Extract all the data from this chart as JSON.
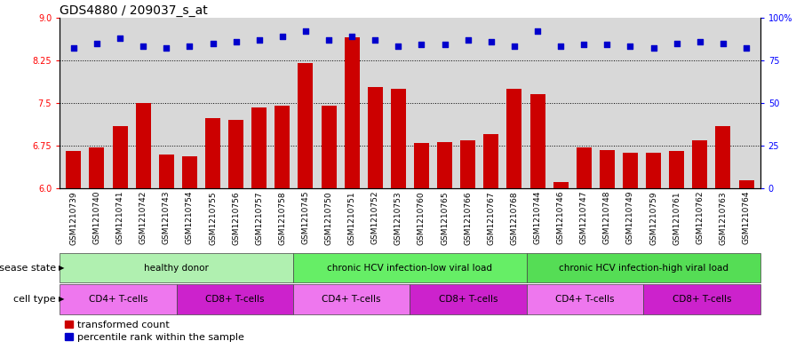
{
  "title": "GDS4880 / 209037_s_at",
  "samples": [
    "GSM1210739",
    "GSM1210740",
    "GSM1210741",
    "GSM1210742",
    "GSM1210743",
    "GSM1210754",
    "GSM1210755",
    "GSM1210756",
    "GSM1210757",
    "GSM1210758",
    "GSM1210745",
    "GSM1210750",
    "GSM1210751",
    "GSM1210752",
    "GSM1210753",
    "GSM1210760",
    "GSM1210765",
    "GSM1210766",
    "GSM1210767",
    "GSM1210768",
    "GSM1210744",
    "GSM1210746",
    "GSM1210747",
    "GSM1210748",
    "GSM1210749",
    "GSM1210759",
    "GSM1210761",
    "GSM1210762",
    "GSM1210763",
    "GSM1210764"
  ],
  "bar_values": [
    6.65,
    6.72,
    7.1,
    7.5,
    6.6,
    6.57,
    7.23,
    7.2,
    7.42,
    7.45,
    8.2,
    7.45,
    8.65,
    7.78,
    7.75,
    6.8,
    6.82,
    6.85,
    6.95,
    7.75,
    7.65,
    6.12,
    6.72,
    6.68,
    6.62,
    6.62,
    6.65,
    6.85,
    7.1,
    6.15
  ],
  "percentile_values": [
    82,
    85,
    88,
    83,
    82,
    83,
    85,
    86,
    87,
    89,
    92,
    87,
    89,
    87,
    83,
    84,
    84,
    87,
    86,
    83,
    92,
    83,
    84,
    84,
    83,
    82,
    85,
    86,
    85,
    82
  ],
  "bar_color": "#cc0000",
  "dot_color": "#0000cc",
  "ylim_left": [
    6.0,
    9.0
  ],
  "ylim_right": [
    0,
    100
  ],
  "yticks_left": [
    6.0,
    6.75,
    7.5,
    8.25,
    9.0
  ],
  "yticks_right": [
    0,
    25,
    50,
    75,
    100
  ],
  "ytick_labels_right": [
    "0",
    "25",
    "50",
    "75",
    "100%"
  ],
  "dotted_lines": [
    6.75,
    7.5,
    8.25
  ],
  "disease_state_groups": [
    {
      "label": "healthy donor",
      "start": 0,
      "end": 9,
      "color": "#b0f0b0"
    },
    {
      "label": "chronic HCV infection-low viral load",
      "start": 10,
      "end": 19,
      "color": "#66ee66"
    },
    {
      "label": "chronic HCV infection-high viral load",
      "start": 20,
      "end": 29,
      "color": "#55dd55"
    }
  ],
  "cell_type_groups": [
    {
      "label": "CD4+ T-cells",
      "start": 0,
      "end": 4,
      "color": "#ee77ee"
    },
    {
      "label": "CD8+ T-cells",
      "start": 5,
      "end": 9,
      "color": "#cc22cc"
    },
    {
      "label": "CD4+ T-cells",
      "start": 10,
      "end": 14,
      "color": "#ee77ee"
    },
    {
      "label": "CD8+ T-cells",
      "start": 15,
      "end": 19,
      "color": "#cc22cc"
    },
    {
      "label": "CD4+ T-cells",
      "start": 20,
      "end": 24,
      "color": "#ee77ee"
    },
    {
      "label": "CD8+ T-cells",
      "start": 25,
      "end": 29,
      "color": "#cc22cc"
    }
  ],
  "legend_items": [
    {
      "label": "transformed count",
      "color": "#cc0000"
    },
    {
      "label": "percentile rank within the sample",
      "color": "#0000cc"
    }
  ],
  "bg_color": "#d8d8d8",
  "title_fontsize": 10,
  "tick_fontsize": 7,
  "label_fontsize": 8,
  "band_label_fontsize": 8,
  "band_content_fontsize": 7.5
}
